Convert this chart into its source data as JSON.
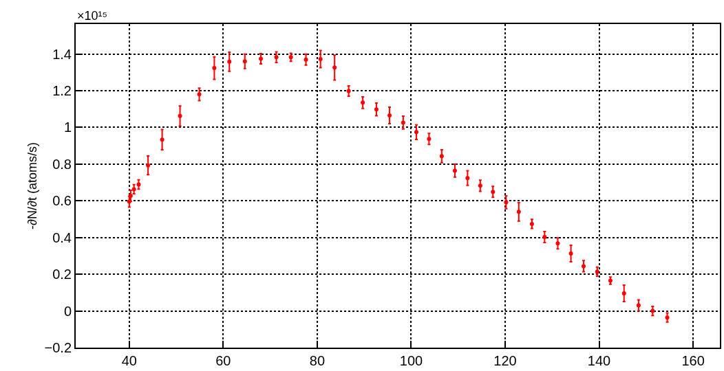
{
  "chart_data": {
    "type": "scatter",
    "ylabel": "-∂N/∂t (atoms/s)",
    "annotations": [
      "×10¹⁵"
    ],
    "x": [
      40.0,
      40.3,
      41.0,
      42.0,
      44.0,
      47.0,
      50.8,
      54.9,
      58.1,
      61.3,
      64.6,
      68.0,
      71.3,
      74.4,
      77.6,
      80.7,
      83.7,
      86.7,
      89.7,
      92.6,
      95.4,
      98.3,
      101.1,
      103.8,
      106.5,
      109.3,
      112.0,
      114.7,
      117.4,
      120.2,
      122.9,
      125.7,
      128.4,
      131.2,
      134.0,
      136.7,
      139.6,
      142.4,
      145.3,
      148.4,
      151.4,
      154.5
    ],
    "series": [
      {
        "color": "#ff0000",
        "values": [
          0.595,
          0.627,
          0.663,
          0.689,
          0.793,
          0.933,
          1.062,
          1.18,
          1.323,
          1.358,
          1.36,
          1.374,
          1.382,
          1.382,
          1.369,
          1.372,
          1.326,
          1.198,
          1.135,
          1.098,
          1.065,
          1.026,
          0.974,
          0.937,
          0.843,
          0.764,
          0.724,
          0.682,
          0.649,
          0.592,
          0.54,
          0.474,
          0.403,
          0.368,
          0.313,
          0.244,
          0.214,
          0.165,
          0.096,
          0.03,
          0.0,
          -0.036
        ],
        "errors": [
          0.03,
          0.03,
          0.025,
          0.025,
          0.051,
          0.055,
          0.055,
          0.034,
          0.061,
          0.052,
          0.039,
          0.028,
          0.029,
          0.022,
          0.03,
          0.047,
          0.068,
          0.028,
          0.031,
          0.035,
          0.045,
          0.035,
          0.04,
          0.03,
          0.035,
          0.035,
          0.04,
          0.03,
          0.03,
          0.035,
          0.05,
          0.025,
          0.03,
          0.03,
          0.045,
          0.03,
          0.025,
          0.02,
          0.045,
          0.03,
          0.025,
          0.025
        ]
      }
    ],
    "xlim": [
      28.6,
      165.7
    ],
    "xticks": [
      40,
      60,
      80,
      100,
      120,
      140,
      160
    ],
    "ylim": [
      -0.2,
      1.563
    ],
    "yticks": [
      {
        "value": -0.2,
        "label": "−0.2"
      },
      0,
      0.2,
      0.4,
      0.6,
      0.8,
      1,
      1.2,
      1.4
    ],
    "grid": true,
    "marker": "circle",
    "legend": false
  }
}
